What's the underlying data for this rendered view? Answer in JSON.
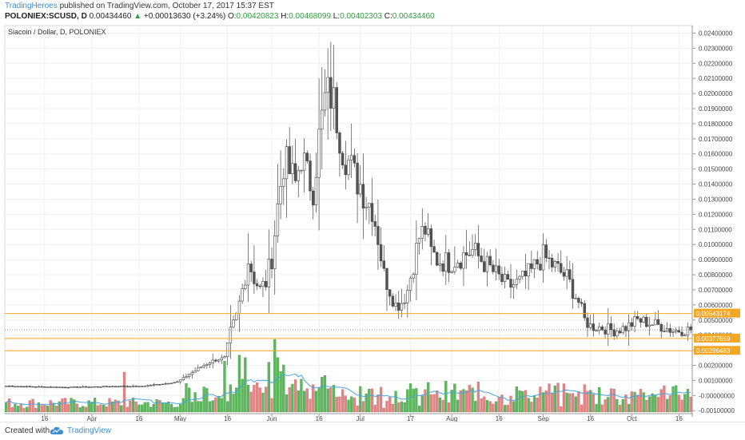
{
  "header": {
    "publisher": "TradingHeroes",
    "published_text": "published on TradingView.com, October 17, 2017 15:37 EST",
    "symbol": "POLONIEX:SCUSD, D",
    "last": "0.00434460",
    "arrow": "▲",
    "change": "+0.00013630 (+3.24%)",
    "o_label": "O:",
    "o_value": "0.00420823",
    "h_label": "H:",
    "h_value": "0.00468099",
    "l_label": "L:",
    "l_value": "0.00402303",
    "c_label": "C:",
    "c_value": "0.00434460"
  },
  "footer": {
    "created_with": "Created with",
    "brand": "TradingView"
  },
  "chart_data": {
    "type": "candlestick",
    "title": "Siacoin / Dollar, D, POLONIEX",
    "y_ticks": [
      "0.02400000",
      "0.02300000",
      "0.02200000",
      "0.02100000",
      "0.02000000",
      "0.01900000",
      "0.01800000",
      "0.01700000",
      "0.01600000",
      "0.01500000",
      "0.01400000",
      "0.01300000",
      "0.01200000",
      "0.01100000",
      "0.01000000",
      "0.00900000",
      "0.00800000",
      "0.00700000",
      "0.00600000",
      "0.00500000",
      "0.00400000",
      "0.00300000",
      "0.00200000",
      "0.00100000",
      "-0.00000000",
      "-0.00100000"
    ],
    "ylim": [
      -0.0012,
      0.0245
    ],
    "x_ticks": [
      {
        "label": "16",
        "i": 13
      },
      {
        "label": "Apr",
        "i": 29
      },
      {
        "label": "16",
        "i": 45
      },
      {
        "label": "May",
        "i": 59
      },
      {
        "label": "16",
        "i": 75
      },
      {
        "label": "Jun",
        "i": 90
      },
      {
        "label": "16",
        "i": 106
      },
      {
        "label": "Jul",
        "i": 120
      },
      {
        "label": "17",
        "i": 137
      },
      {
        "label": "Aug",
        "i": 151
      },
      {
        "label": "16",
        "i": 167
      },
      {
        "label": "Sep",
        "i": 182
      },
      {
        "label": "16",
        "i": 198
      },
      {
        "label": "Oct",
        "i": 212
      },
      {
        "label": "16",
        "i": 228
      }
    ],
    "horizontal_levels": [
      {
        "value": 0.00543174,
        "label": "0.00543174",
        "color": "#f5a623"
      },
      {
        "value": 0.00377659,
        "label": "0.00377659",
        "color": "#f5a623"
      },
      {
        "value": 0.00296483,
        "label": "0.00296483",
        "color": "#f5a623"
      }
    ],
    "current_price": 0.0043446,
    "grid": true,
    "colors": {
      "level": "#f5a623",
      "up_volume": "#5cb85c",
      "down_volume": "#e08585",
      "volume_ma": "#4aa3df",
      "candle": "#444444"
    },
    "close_anchors": [
      [
        0,
        0.00063
      ],
      [
        10,
        0.00058
      ],
      [
        20,
        0.00055
      ],
      [
        28,
        0.00057
      ],
      [
        38,
        0.00062
      ],
      [
        45,
        0.0006
      ],
      [
        52,
        0.00075
      ],
      [
        58,
        0.0009
      ],
      [
        62,
        0.0014
      ],
      [
        66,
        0.0019
      ],
      [
        70,
        0.0023
      ],
      [
        74,
        0.0025
      ],
      [
        76,
        0.0042
      ],
      [
        78,
        0.0052
      ],
      [
        80,
        0.007
      ],
      [
        82,
        0.009
      ],
      [
        84,
        0.0078
      ],
      [
        86,
        0.007
      ],
      [
        88,
        0.0075
      ],
      [
        90,
        0.0092
      ],
      [
        92,
        0.0125
      ],
      [
        94,
        0.0155
      ],
      [
        96,
        0.0148
      ],
      [
        98,
        0.014
      ],
      [
        100,
        0.016
      ],
      [
        102,
        0.0145
      ],
      [
        104,
        0.0138
      ],
      [
        106,
        0.017
      ],
      [
        108,
        0.0195
      ],
      [
        110,
        0.02
      ],
      [
        112,
        0.0185
      ],
      [
        114,
        0.0165
      ],
      [
        116,
        0.0155
      ],
      [
        118,
        0.0145
      ],
      [
        120,
        0.014
      ],
      [
        122,
        0.013
      ],
      [
        124,
        0.0125
      ],
      [
        126,
        0.0105
      ],
      [
        128,
        0.008
      ],
      [
        130,
        0.007
      ],
      [
        132,
        0.006
      ],
      [
        134,
        0.0062
      ],
      [
        136,
        0.007
      ],
      [
        138,
        0.0088
      ],
      [
        140,
        0.0105
      ],
      [
        142,
        0.011
      ],
      [
        144,
        0.0095
      ],
      [
        146,
        0.009
      ],
      [
        150,
        0.0088
      ],
      [
        154,
        0.0092
      ],
      [
        158,
        0.0096
      ],
      [
        162,
        0.0088
      ],
      [
        166,
        0.008
      ],
      [
        170,
        0.0072
      ],
      [
        174,
        0.0075
      ],
      [
        178,
        0.0082
      ],
      [
        180,
        0.0088
      ],
      [
        182,
        0.0092
      ],
      [
        186,
        0.0085
      ],
      [
        190,
        0.0078
      ],
      [
        194,
        0.0062
      ],
      [
        196,
        0.005
      ],
      [
        198,
        0.0046
      ],
      [
        202,
        0.0045
      ],
      [
        206,
        0.0043
      ],
      [
        210,
        0.0045
      ],
      [
        214,
        0.005
      ],
      [
        218,
        0.0048
      ],
      [
        222,
        0.0046
      ],
      [
        226,
        0.0043
      ],
      [
        230,
        0.00434
      ]
    ],
    "volume_note": "relative volume bars along the bottom, spikes near mid-April, mid-May and early June"
  }
}
